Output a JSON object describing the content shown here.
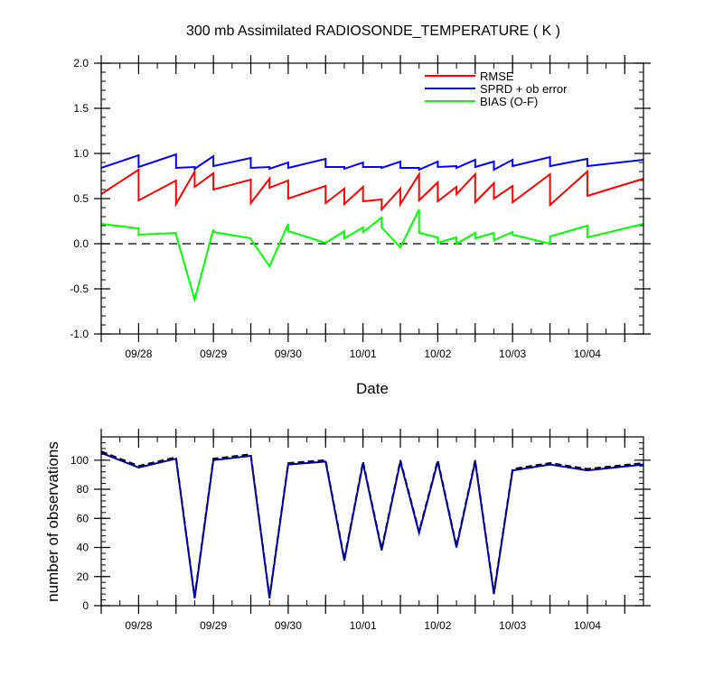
{
  "figure": {
    "title": "300 mb Assimilated RADIOSONDE_TEMPERATURE ( K )"
  },
  "chart_data": [
    {
      "type": "line",
      "title": "300 mb Assimilated RADIOSONDE_TEMPERATURE ( K )",
      "xlabel": "Date",
      "ylabel": "",
      "x_tick_labels": [
        "09/28",
        "09/29",
        "09/30",
        "10/01",
        "10/02",
        "10/03",
        "10/04"
      ],
      "xlim": [
        "09/27 12:00",
        "10/04 18:00"
      ],
      "ylim": [
        -1.0,
        2.0
      ],
      "y_tick_labels": [
        "-1.0",
        "-0.5",
        "0.0",
        "0.5",
        "1.0",
        "1.5",
        "2.0"
      ],
      "reference_line": {
        "y": 0.0,
        "style": "dashed"
      },
      "legend_position": "top-right",
      "series": [
        {
          "name": "RMSE",
          "color": "#ff0000",
          "points": [
            [
              "09/27 12:00",
              0.55
            ],
            [
              "09/28 00:00",
              0.82
            ],
            [
              "09/28 00:00",
              0.48
            ],
            [
              "09/28 12:00",
              0.7
            ],
            [
              "09/28 12:00",
              0.44
            ],
            [
              "09/28 18:00",
              0.8
            ],
            [
              "09/28 18:00",
              0.63
            ],
            [
              "09/29 00:00",
              0.78
            ],
            [
              "09/29 00:00",
              0.6
            ],
            [
              "09/29 12:00",
              0.71
            ],
            [
              "09/29 12:00",
              0.45
            ],
            [
              "09/29 18:00",
              0.72
            ],
            [
              "09/29 18:00",
              0.62
            ],
            [
              "09/30 00:00",
              0.7
            ],
            [
              "09/30 00:00",
              0.5
            ],
            [
              "09/30 12:00",
              0.64
            ],
            [
              "09/30 12:00",
              0.45
            ],
            [
              "09/30 18:00",
              0.61
            ],
            [
              "09/30 18:00",
              0.44
            ],
            [
              "10/01 00:00",
              0.63
            ],
            [
              "10/01 00:00",
              0.47
            ],
            [
              "10/01 06:00",
              0.49
            ],
            [
              "10/01 06:00",
              0.38
            ],
            [
              "10/01 12:00",
              0.61
            ],
            [
              "10/01 12:00",
              0.44
            ],
            [
              "10/01 18:00",
              0.77
            ],
            [
              "10/01 18:00",
              0.48
            ],
            [
              "10/02 00:00",
              0.68
            ],
            [
              "10/02 00:00",
              0.47
            ],
            [
              "10/02 06:00",
              0.63
            ],
            [
              "10/02 06:00",
              0.55
            ],
            [
              "10/02 12:00",
              0.77
            ],
            [
              "10/02 12:00",
              0.46
            ],
            [
              "10/02 18:00",
              0.67
            ],
            [
              "10/02 18:00",
              0.5
            ],
            [
              "10/03 00:00",
              0.64
            ],
            [
              "10/03 00:00",
              0.46
            ],
            [
              "10/03 12:00",
              0.77
            ],
            [
              "10/03 12:00",
              0.43
            ],
            [
              "10/04 00:00",
              0.8
            ],
            [
              "10/04 00:00",
              0.53
            ],
            [
              "10/04 18:00",
              0.72
            ]
          ]
        },
        {
          "name": "SPRD + ob error",
          "color": "#0000ff",
          "points": [
            [
              "09/27 12:00",
              0.84
            ],
            [
              "09/28 00:00",
              0.98
            ],
            [
              "09/28 00:00",
              0.85
            ],
            [
              "09/28 12:00",
              0.99
            ],
            [
              "09/28 12:00",
              0.84
            ],
            [
              "09/28 18:00",
              0.85
            ],
            [
              "09/28 18:00",
              0.83
            ],
            [
              "09/29 00:00",
              0.97
            ],
            [
              "09/29 00:00",
              0.86
            ],
            [
              "09/29 12:00",
              0.95
            ],
            [
              "09/29 12:00",
              0.84
            ],
            [
              "09/29 18:00",
              0.85
            ],
            [
              "09/29 18:00",
              0.83
            ],
            [
              "09/30 00:00",
              0.9
            ],
            [
              "09/30 00:00",
              0.84
            ],
            [
              "09/30 12:00",
              0.94
            ],
            [
              "09/30 12:00",
              0.85
            ],
            [
              "09/30 18:00",
              0.85
            ],
            [
              "09/30 18:00",
              0.83
            ],
            [
              "10/01 00:00",
              0.9
            ],
            [
              "10/01 00:00",
              0.85
            ],
            [
              "10/01 06:00",
              0.85
            ],
            [
              "10/01 06:00",
              0.84
            ],
            [
              "10/01 12:00",
              0.91
            ],
            [
              "10/01 12:00",
              0.84
            ],
            [
              "10/01 18:00",
              0.84
            ],
            [
              "10/01 18:00",
              0.82
            ],
            [
              "10/02 00:00",
              0.91
            ],
            [
              "10/02 00:00",
              0.85
            ],
            [
              "10/02 06:00",
              0.86
            ],
            [
              "10/02 06:00",
              0.84
            ],
            [
              "10/02 12:00",
              0.93
            ],
            [
              "10/02 12:00",
              0.85
            ],
            [
              "10/02 18:00",
              0.91
            ],
            [
              "10/02 18:00",
              0.82
            ],
            [
              "10/03 00:00",
              0.93
            ],
            [
              "10/03 00:00",
              0.86
            ],
            [
              "10/03 12:00",
              0.96
            ],
            [
              "10/03 12:00",
              0.86
            ],
            [
              "10/04 00:00",
              0.94
            ],
            [
              "10/04 00:00",
              0.86
            ],
            [
              "10/04 18:00",
              0.93
            ]
          ]
        },
        {
          "name": "BIAS (O-F)",
          "color": "#00ff00",
          "points": [
            [
              "09/27 12:00",
              0.22
            ],
            [
              "09/28 00:00",
              0.17
            ],
            [
              "09/28 00:00",
              0.1
            ],
            [
              "09/28 12:00",
              0.12
            ],
            [
              "09/28 12:00",
              0.1
            ],
            [
              "09/28 18:00",
              -0.62
            ],
            [
              "09/29 00:00",
              0.16
            ],
            [
              "09/29 00:00",
              0.13
            ],
            [
              "09/29 12:00",
              0.06
            ],
            [
              "09/29 12:00",
              0.05
            ],
            [
              "09/29 18:00",
              -0.25
            ],
            [
              "09/30 00:00",
              0.22
            ],
            [
              "09/30 00:00",
              0.14
            ],
            [
              "09/30 12:00",
              0.01
            ],
            [
              "09/30 18:00",
              0.14
            ],
            [
              "09/30 18:00",
              0.06
            ],
            [
              "10/01 00:00",
              0.18
            ],
            [
              "10/01 00:00",
              0.13
            ],
            [
              "10/01 06:00",
              0.29
            ],
            [
              "10/01 06:00",
              0.18
            ],
            [
              "10/01 12:00",
              -0.04
            ],
            [
              "10/01 18:00",
              0.38
            ],
            [
              "10/01 18:00",
              0.12
            ],
            [
              "10/02 00:00",
              0.07
            ],
            [
              "10/02 00:00",
              0.01
            ],
            [
              "10/02 06:00",
              0.07
            ],
            [
              "10/02 06:00",
              0.0
            ],
            [
              "10/02 12:00",
              0.12
            ],
            [
              "10/02 12:00",
              0.06
            ],
            [
              "10/02 18:00",
              0.12
            ],
            [
              "10/02 18:00",
              0.04
            ],
            [
              "10/03 00:00",
              0.13
            ],
            [
              "10/03 00:00",
              0.1
            ],
            [
              "10/03 12:00",
              0.0
            ],
            [
              "10/03 12:00",
              0.08
            ],
            [
              "10/04 00:00",
              0.2
            ],
            [
              "10/04 00:00",
              0.07
            ],
            [
              "10/04 18:00",
              0.22
            ]
          ]
        }
      ]
    },
    {
      "type": "line",
      "title": "",
      "xlabel": "",
      "ylabel": "number of observations",
      "x_tick_labels": [
        "09/28",
        "09/29",
        "09/30",
        "10/01",
        "10/02",
        "10/03",
        "10/04"
      ],
      "xlim": [
        "09/27 12:00",
        "10/04 18:00"
      ],
      "ylim": [
        0,
        116
      ],
      "y_tick_labels": [
        "0",
        "20",
        "40",
        "60",
        "80",
        "100"
      ],
      "series": [
        {
          "style": "dashed",
          "color": "#000000",
          "points": [
            [
              "09/27 12:00",
              106
            ],
            [
              "09/28 00:00",
              96
            ],
            [
              "09/28 12:00",
              102
            ],
            [
              "09/28 18:00",
              6
            ],
            [
              "09/29 00:00",
              101
            ],
            [
              "09/29 12:00",
              104
            ],
            [
              "09/29 18:00",
              6
            ],
            [
              "09/30 00:00",
              98
            ],
            [
              "09/30 12:00",
              100
            ],
            [
              "09/30 18:00",
              32
            ],
            [
              "10/01 00:00",
              99
            ],
            [
              "10/01 06:00",
              39
            ],
            [
              "10/01 12:00",
              100
            ],
            [
              "10/01 18:00",
              51
            ],
            [
              "10/02 00:00",
              100
            ],
            [
              "10/02 06:00",
              41
            ],
            [
              "10/02 12:00",
              100
            ],
            [
              "10/02 18:00",
              9
            ],
            [
              "10/03 00:00",
              94
            ],
            [
              "10/03 12:00",
              98
            ],
            [
              "10/04 00:00",
              94
            ],
            [
              "10/04 18:00",
              98
            ]
          ]
        },
        {
          "style": "solid",
          "color": "#0000a0",
          "points": [
            [
              "09/27 12:00",
              105
            ],
            [
              "09/28 00:00",
              95
            ],
            [
              "09/28 12:00",
              101
            ],
            [
              "09/28 18:00",
              5
            ],
            [
              "09/29 00:00",
              100
            ],
            [
              "09/29 12:00",
              103
            ],
            [
              "09/29 18:00",
              5
            ],
            [
              "09/30 00:00",
              97
            ],
            [
              "09/30 12:00",
              99
            ],
            [
              "09/30 18:00",
              31
            ],
            [
              "10/01 00:00",
              98
            ],
            [
              "10/01 06:00",
              38
            ],
            [
              "10/01 12:00",
              99
            ],
            [
              "10/01 18:00",
              50
            ],
            [
              "10/02 00:00",
              99
            ],
            [
              "10/02 06:00",
              40
            ],
            [
              "10/02 12:00",
              99
            ],
            [
              "10/02 18:00",
              8
            ],
            [
              "10/03 00:00",
              93
            ],
            [
              "10/03 12:00",
              97
            ],
            [
              "10/04 00:00",
              93
            ],
            [
              "10/04 18:00",
              97
            ]
          ]
        }
      ]
    }
  ]
}
